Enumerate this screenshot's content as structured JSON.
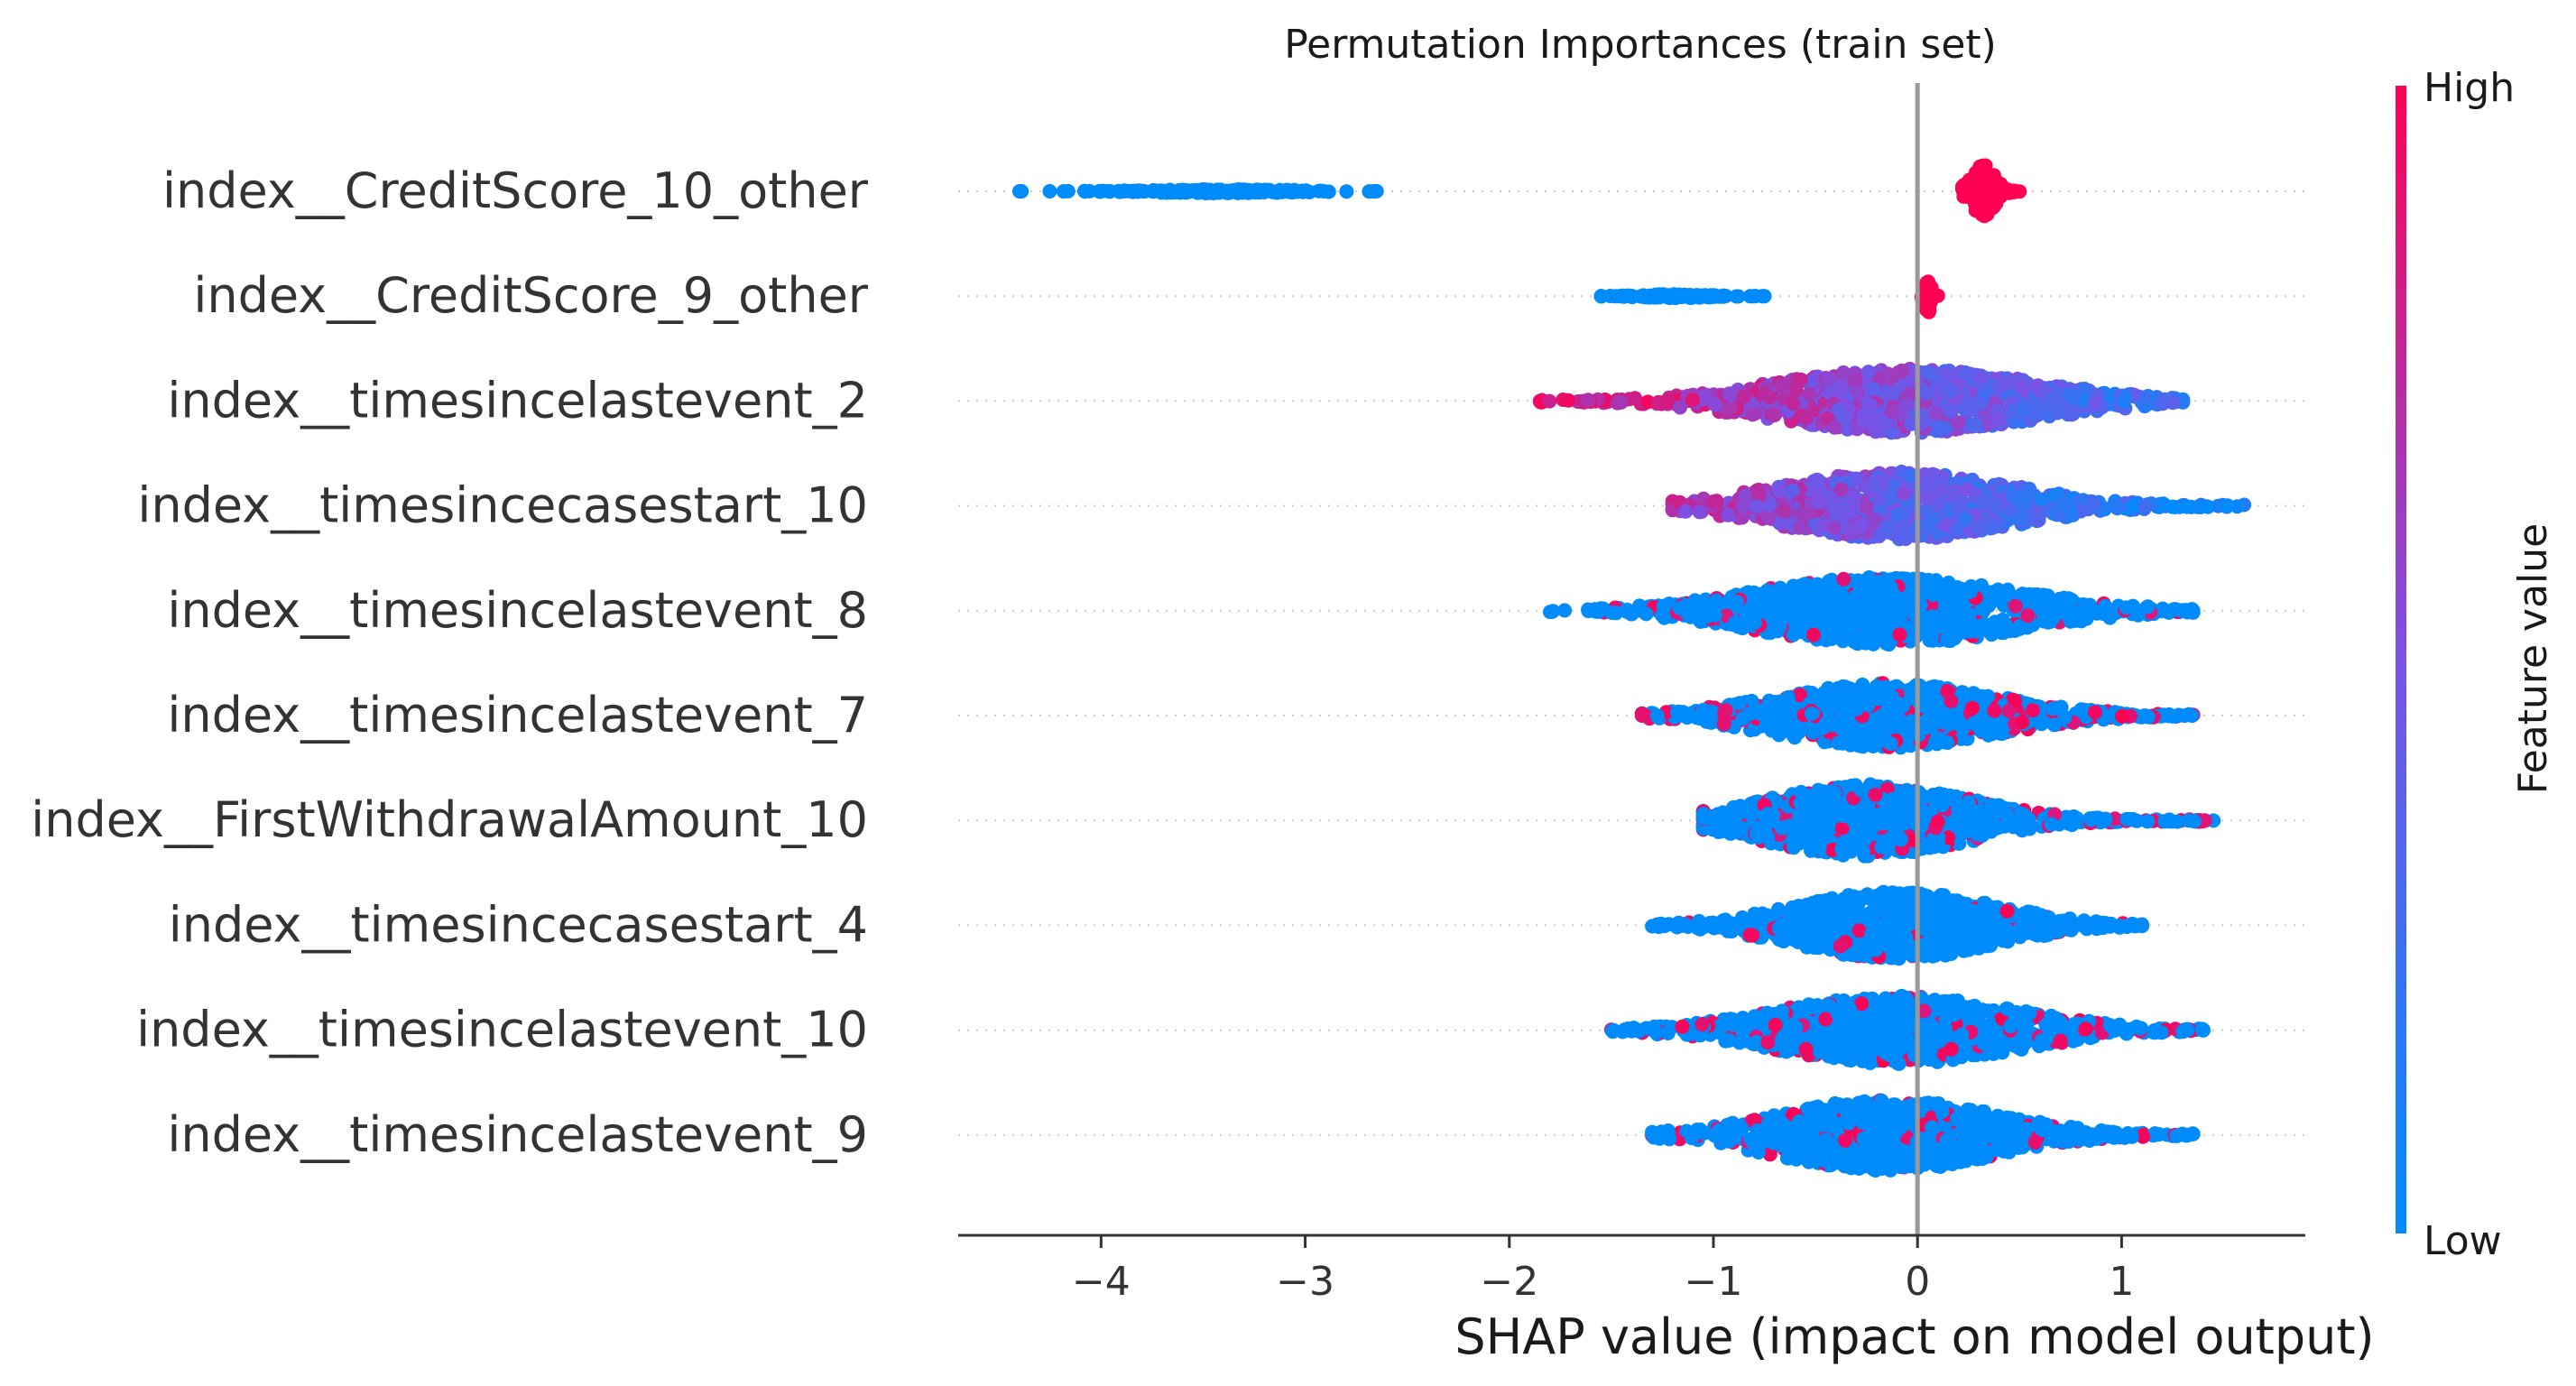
{
  "colors": {
    "low": "#008bfb",
    "high": "#ff0052",
    "zero_line": "#999999",
    "row_guide": "#cccccc",
    "axis": "#333333"
  },
  "chart_data": {
    "type": "scatter",
    "subtype": "shap-beeswarm",
    "title": "Permutation Importances (train set)",
    "xlabel": "SHAP value (impact on model output)",
    "xlim": [
      -4.7,
      1.9
    ],
    "xticks": [
      -4,
      -3,
      -2,
      -1,
      0,
      1
    ],
    "xtick_labels": [
      "−4",
      "−3",
      "−2",
      "−1",
      "0",
      "1"
    ],
    "colorbar": {
      "label": "Feature value",
      "high_label": "High",
      "low_label": "Low"
    },
    "features": [
      {
        "name": "index__CreditScore_10_other",
        "clusters": [
          {
            "min": -4.4,
            "max": -2.65,
            "center": -3.4,
            "spread": 0.05,
            "count": 180,
            "color": 0.0
          },
          {
            "min": 0.22,
            "max": 0.5,
            "center": 0.32,
            "spread": 0.7,
            "count": 120,
            "color": 1.0
          }
        ]
      },
      {
        "name": "index__CreditScore_9_other",
        "clusters": [
          {
            "min": -1.55,
            "max": -0.75,
            "center": -1.2,
            "spread": 0.05,
            "count": 120,
            "color": 0.0
          },
          {
            "min": 0.02,
            "max": 0.1,
            "center": 0.05,
            "spread": 0.45,
            "count": 60,
            "color": 1.0
          }
        ]
      },
      {
        "name": "index__timesincelastevent_2",
        "clusters": [
          {
            "min": -1.85,
            "max": 1.3,
            "center": -0.05,
            "spread": 0.85,
            "count": 900,
            "color_mode": "gradient",
            "color_left": 0.9,
            "color_right": 0.2
          }
        ]
      },
      {
        "name": "index__timesincecasestart_10",
        "clusters": [
          {
            "min": -1.2,
            "max": 1.6,
            "center": -0.1,
            "spread": 0.9,
            "count": 900,
            "color_mode": "gradient",
            "color_left": 0.7,
            "color_right": 0.0
          }
        ]
      },
      {
        "name": "index__timesincelastevent_8",
        "clusters": [
          {
            "min": -1.8,
            "max": 1.35,
            "center": -0.15,
            "spread": 0.9,
            "count": 900,
            "color_mode": "mixed",
            "red_fraction": 0.08
          }
        ]
      },
      {
        "name": "index__timesincelastevent_7",
        "clusters": [
          {
            "min": -1.35,
            "max": 1.35,
            "center": -0.15,
            "spread": 0.85,
            "count": 900,
            "color_mode": "mixed",
            "red_fraction": 0.2
          }
        ]
      },
      {
        "name": "index__FirstWithdrawalAmount_10",
        "clusters": [
          {
            "min": -1.05,
            "max": 1.45,
            "center": -0.25,
            "spread": 0.95,
            "count": 900,
            "color_mode": "mixed",
            "red_fraction": 0.15
          }
        ]
      },
      {
        "name": "index__timesincecasestart_4",
        "clusters": [
          {
            "min": -1.3,
            "max": 1.1,
            "center": -0.1,
            "spread": 0.9,
            "count": 900,
            "color_mode": "mixed",
            "red_fraction": 0.05
          }
        ]
      },
      {
        "name": "index__timesincelastevent_10",
        "clusters": [
          {
            "min": -1.5,
            "max": 1.4,
            "center": -0.1,
            "spread": 0.9,
            "count": 900,
            "color_mode": "mixed",
            "red_fraction": 0.1
          }
        ]
      },
      {
        "name": "index__timesincelastevent_9",
        "clusters": [
          {
            "min": -1.3,
            "max": 1.35,
            "center": -0.15,
            "spread": 0.95,
            "count": 900,
            "color_mode": "mixed",
            "red_fraction": 0.12
          }
        ]
      }
    ]
  }
}
